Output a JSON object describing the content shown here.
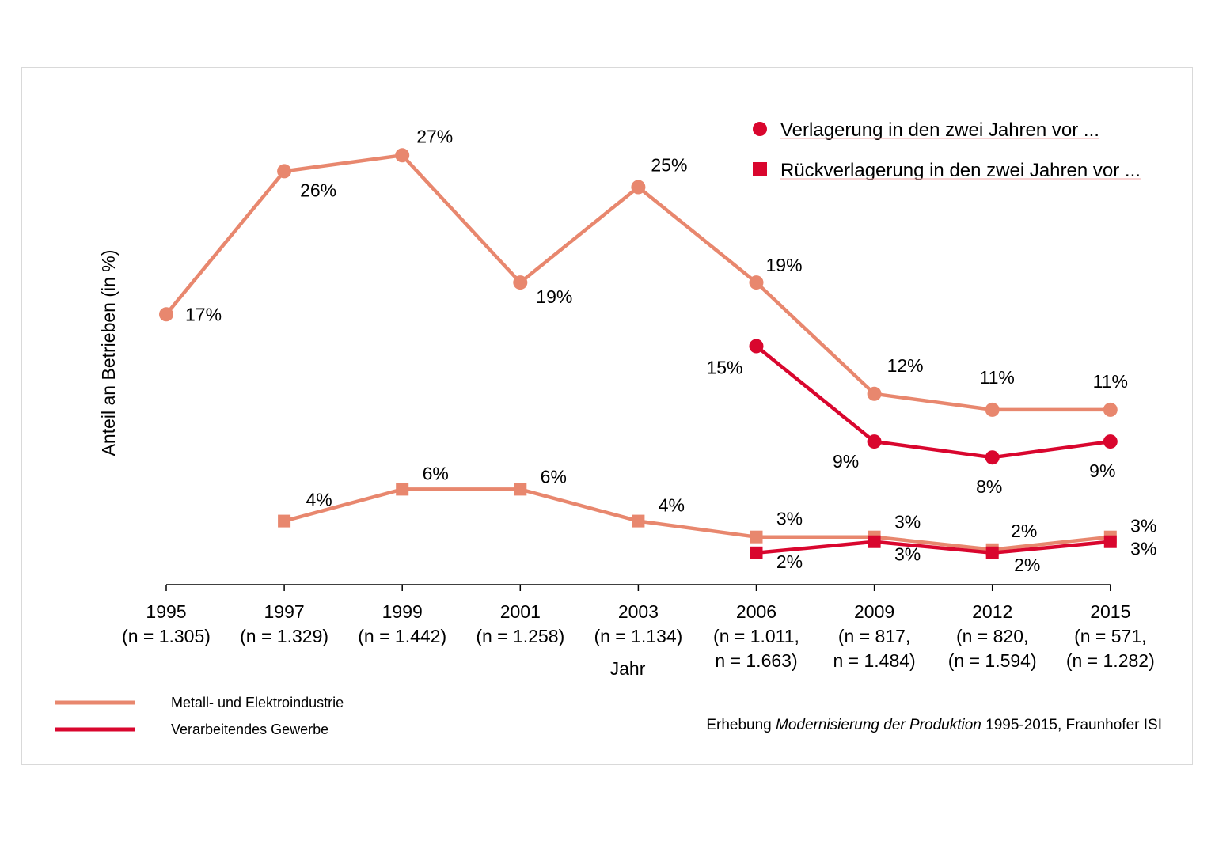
{
  "chart_data": {
    "type": "line",
    "ylabel": "Anteil an Betrieben (in %)",
    "xlabel": "Jahr",
    "categories": [
      [
        "1995",
        "(n = 1.305)"
      ],
      [
        "1997",
        "(n = 1.329)"
      ],
      [
        "1999",
        "(n = 1.442)"
      ],
      [
        "2001",
        "(n = 1.258)"
      ],
      [
        "2003",
        "(n = 1.134)"
      ],
      [
        "2006",
        "(n = 1.011,",
        "n = 1.663)"
      ],
      [
        "2009",
        "(n = 817,",
        "n = 1.484)"
      ],
      [
        "2012",
        "(n = 820,",
        "(n = 1.594)"
      ],
      [
        "2015",
        "(n = 571,",
        "(n = 1.282)"
      ]
    ],
    "series": [
      {
        "key": "me_verl",
        "industry": "Metall- und Elektroindustrie",
        "measure": "Verlagerung in den zwei Jahren vor ...",
        "marker": "circle",
        "color": "#E8876E",
        "values": [
          17,
          26,
          27,
          19,
          25,
          19,
          12,
          11,
          11
        ],
        "labels": [
          "17%",
          "26%",
          "27%",
          "19%",
          "25%",
          "19%",
          "12%",
          "11%",
          "11%"
        ]
      },
      {
        "key": "vg_verl",
        "industry": "Verarbeitendes Gewerbe",
        "measure": "Verlagerung in den zwei Jahren vor ...",
        "marker": "circle",
        "color": "#D9062E",
        "values": [
          null,
          null,
          null,
          null,
          null,
          15,
          9,
          8,
          9
        ],
        "labels": [
          null,
          null,
          null,
          null,
          null,
          "15%",
          "9%",
          "8%",
          "9%"
        ]
      },
      {
        "key": "me_rueck",
        "industry": "Metall- und Elektroindustrie",
        "measure": "Rückverlagerung in den zwei Jahren vor ...",
        "marker": "square",
        "color": "#E8876E",
        "values": [
          null,
          4,
          6,
          6,
          4,
          3,
          3,
          2.2,
          3
        ],
        "labels": [
          null,
          "4%",
          "6%",
          "6%",
          "4%",
          "3%",
          "3%",
          "2%",
          "3%"
        ]
      },
      {
        "key": "vg_rueck",
        "industry": "Verarbeitendes Gewerbe",
        "measure": "Rückverlagerung in den zwei Jahren vor ...",
        "marker": "square",
        "color": "#D9062E",
        "values": [
          null,
          null,
          null,
          null,
          null,
          2,
          2.7,
          2,
          2.7
        ],
        "labels": [
          null,
          null,
          null,
          null,
          null,
          "2%",
          "3%",
          "2%",
          "3%"
        ]
      }
    ],
    "legend_markers": [
      {
        "marker": "circle",
        "label": "Verlagerung in den zwei Jahren vor ..."
      },
      {
        "marker": "square",
        "label": "Rückverlagerung in den zwei Jahren vor ..."
      }
    ],
    "legend_lines": [
      {
        "color": "#E8876E",
        "label": "Metall- und Elektroindustrie"
      },
      {
        "color": "#D9062E",
        "label": "Verarbeitendes Gewerbe"
      }
    ],
    "legend_marker_color": "#D9062E",
    "source": {
      "prefix": "Erhebung ",
      "italic": "Modernisierung der Produktion",
      "suffix": " 1995-2015, Fraunhofer ISI"
    },
    "grid": false,
    "legend_position": "top-right"
  }
}
